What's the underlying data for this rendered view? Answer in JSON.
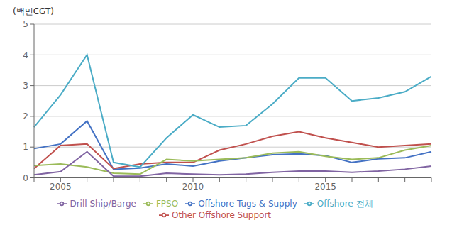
{
  "chart_data": {
    "type": "line",
    "y_label": "(백만CGT)",
    "categories": [
      null,
      "2005",
      null,
      null,
      null,
      null,
      "2010",
      null,
      null,
      null,
      null,
      "2015",
      null,
      null,
      null,
      null
    ],
    "series": [
      {
        "name": "Offshore Tugs & Supply",
        "color": "#4472C4",
        "values": [
          0.95,
          1.1,
          1.85,
          0.28,
          0.32,
          0.45,
          0.38,
          0.55,
          0.65,
          0.75,
          0.78,
          0.72,
          0.5,
          0.62,
          0.65,
          0.85
        ]
      },
      {
        "name": "Other Offshore Support",
        "color": "#C0504D",
        "values": [
          0.3,
          1.05,
          1.1,
          0.3,
          0.45,
          0.5,
          0.5,
          0.9,
          1.1,
          1.35,
          1.5,
          1.3,
          1.15,
          1.0,
          1.05,
          1.1
        ]
      },
      {
        "name": "FPSO",
        "color": "#9BBB59",
        "values": [
          0.4,
          0.45,
          0.35,
          0.15,
          0.12,
          0.6,
          0.55,
          0.6,
          0.65,
          0.8,
          0.85,
          0.7,
          0.6,
          0.65,
          0.9,
          1.05
        ]
      },
      {
        "name": "Drill Ship/Barge",
        "color": "#8064A2",
        "values": [
          0.1,
          0.2,
          0.85,
          0.05,
          0.05,
          0.15,
          0.12,
          0.1,
          0.12,
          0.18,
          0.22,
          0.22,
          0.18,
          0.22,
          0.28,
          0.38
        ]
      },
      {
        "name": "Offshore 전체",
        "color": "#4BACC6",
        "values": [
          1.65,
          2.7,
          4.0,
          0.5,
          0.35,
          1.3,
          2.05,
          1.65,
          1.7,
          2.4,
          3.25,
          3.25,
          2.5,
          2.6,
          2.8,
          3.3
        ]
      }
    ],
    "ylim": [
      0,
      5
    ],
    "yticks": [
      0,
      1,
      2,
      3,
      4,
      5
    ],
    "grid": true,
    "legend": "bottom"
  }
}
